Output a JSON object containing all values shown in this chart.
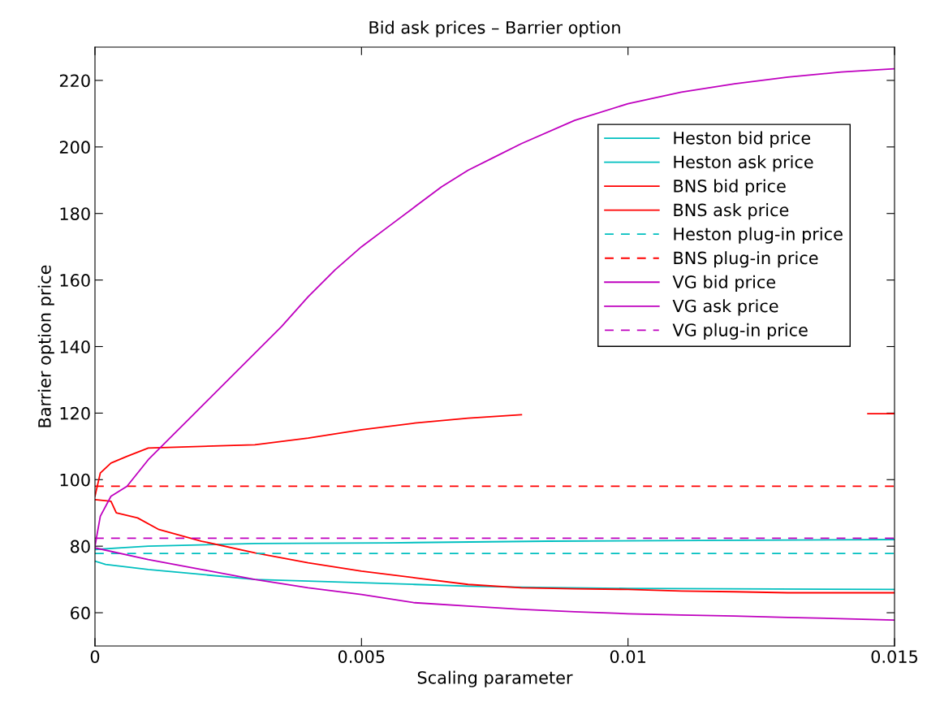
{
  "chart_data": {
    "type": "line",
    "title": "Bid ask prices – Barrier option",
    "xlabel": "Scaling parameter",
    "ylabel": "Barrier option price",
    "xlim": [
      0,
      0.015
    ],
    "xticks": [
      0,
      0.005,
      0.01,
      0.015
    ],
    "ylim": [
      50,
      230
    ],
    "yticks": [
      60,
      80,
      100,
      120,
      140,
      160,
      180,
      200,
      220
    ],
    "grid": false,
    "legend": "top right",
    "marker": "none",
    "series": [
      {
        "name": "Heston bid price",
        "color": "#00bfbf",
        "line_style": "solid",
        "x": [
          0,
          0.0002,
          0.001,
          0.002,
          0.003,
          0.004,
          0.005,
          0.006,
          0.007,
          0.008,
          0.01,
          0.015
        ],
        "values": [
          75.5,
          74.5,
          73,
          71.5,
          70,
          69.5,
          69,
          68.5,
          68,
          67.7,
          67.3,
          67
        ]
      },
      {
        "name": "Heston ask price",
        "color": "#00bfbf",
        "line_style": "solid",
        "x": [
          0,
          0.0005,
          0.001,
          0.003,
          0.0055,
          0.0085,
          0.015
        ],
        "values": [
          79,
          79.5,
          80,
          80.8,
          81,
          81.5,
          82
        ]
      },
      {
        "name": "BNS bid price",
        "color": "#ff0000",
        "line_style": "solid",
        "x": [
          0,
          0.0003,
          0.0004,
          0.0008,
          0.0012,
          0.002,
          0.003,
          0.004,
          0.005,
          0.006,
          0.007,
          0.008,
          0.009,
          0.01,
          0.011,
          0.012,
          0.013,
          0.015
        ],
        "values": [
          94,
          93.5,
          90,
          88.5,
          85,
          81.5,
          78,
          75,
          72.5,
          70.5,
          68.5,
          67.5,
          67.2,
          67,
          66.5,
          66.3,
          66,
          66
        ]
      },
      {
        "name": "BNS ask price",
        "color": "#ff0000",
        "line_style": "solid",
        "x": [
          0,
          0.0001,
          0.0003,
          0.0006,
          0.001,
          0.002,
          0.003,
          0.004,
          0.005,
          0.006,
          0.007,
          0.008,
          0.011,
          0.0145,
          0.015
        ],
        "values": [
          95,
          102,
          105,
          107,
          109.5,
          110,
          110.5,
          112.5,
          115,
          117,
          118.5,
          119.5,
          null,
          119.8,
          119.8
        ]
      },
      {
        "name": "Heston plug-in price",
        "color": "#00bfbf",
        "line_style": "dashed",
        "x": [
          0,
          0.015
        ],
        "values": [
          77.8,
          77.8
        ]
      },
      {
        "name": "BNS plug-in price",
        "color": "#ff0000",
        "line_style": "dashed",
        "x": [
          0,
          0.015
        ],
        "values": [
          98,
          98
        ]
      },
      {
        "name": "VG bid price",
        "color": "#bf00bf",
        "line_style": "solid",
        "x": [
          0,
          0.001,
          0.002,
          0.003,
          0.004,
          0.005,
          0.006,
          0.007,
          0.008,
          0.009,
          0.01,
          0.011,
          0.012,
          0.013,
          0.015
        ],
        "values": [
          79.5,
          76,
          73,
          70,
          67.5,
          65.5,
          63,
          62,
          61,
          60.3,
          59.7,
          59.3,
          59,
          58.6,
          57.8
        ]
      },
      {
        "name": "VG ask price",
        "color": "#bf00bf",
        "line_style": "solid",
        "x": [
          0,
          0.0001,
          0.0003,
          0.0006,
          0.001,
          0.0015,
          0.002,
          0.0025,
          0.003,
          0.0035,
          0.004,
          0.0045,
          0.005,
          0.0055,
          0.006,
          0.0065,
          0.007,
          0.0075,
          0.008,
          0.009,
          0.01,
          0.011,
          0.012,
          0.013,
          0.014,
          0.015
        ],
        "values": [
          80,
          89,
          95,
          98,
          106,
          114,
          122,
          130,
          138,
          146,
          155,
          163,
          170,
          176,
          182,
          188,
          193,
          197,
          201,
          208,
          213,
          216.5,
          219,
          221,
          222.5,
          223.5
        ]
      },
      {
        "name": "VG plug-in price",
        "color": "#bf00bf",
        "line_style": "dashed",
        "x": [
          0,
          0.015
        ],
        "values": [
          82.4,
          82.4
        ]
      }
    ]
  }
}
